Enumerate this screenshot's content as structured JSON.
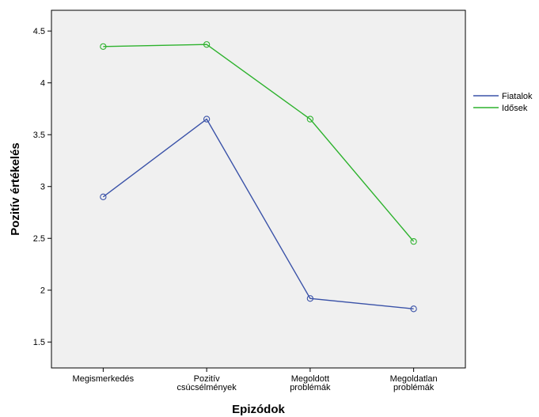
{
  "chart_data": {
    "type": "line",
    "categories": [
      [
        "Megismerkedés"
      ],
      [
        "Pozitív",
        "csúcsélmények"
      ],
      [
        "Megoldott",
        "problémák"
      ],
      [
        "Megoldatlan",
        "problémák"
      ]
    ],
    "series": [
      {
        "name": "Fiatalok",
        "color": "#3a52a8",
        "values": [
          2.9,
          3.65,
          1.92,
          1.82
        ]
      },
      {
        "name": "Idősek",
        "color": "#2db22d",
        "values": [
          4.35,
          4.37,
          3.65,
          2.47
        ]
      }
    ],
    "xlabel": "Epizódok",
    "ylabel": "Pozitív értékelés",
    "yticks": [
      "1.5",
      "2",
      "2.5",
      "3",
      "3.5",
      "4",
      "4.5"
    ],
    "ylim": [
      1.25,
      4.7
    ],
    "grid": false,
    "legend_position": "right",
    "plot_background": "#f0f0f0"
  }
}
